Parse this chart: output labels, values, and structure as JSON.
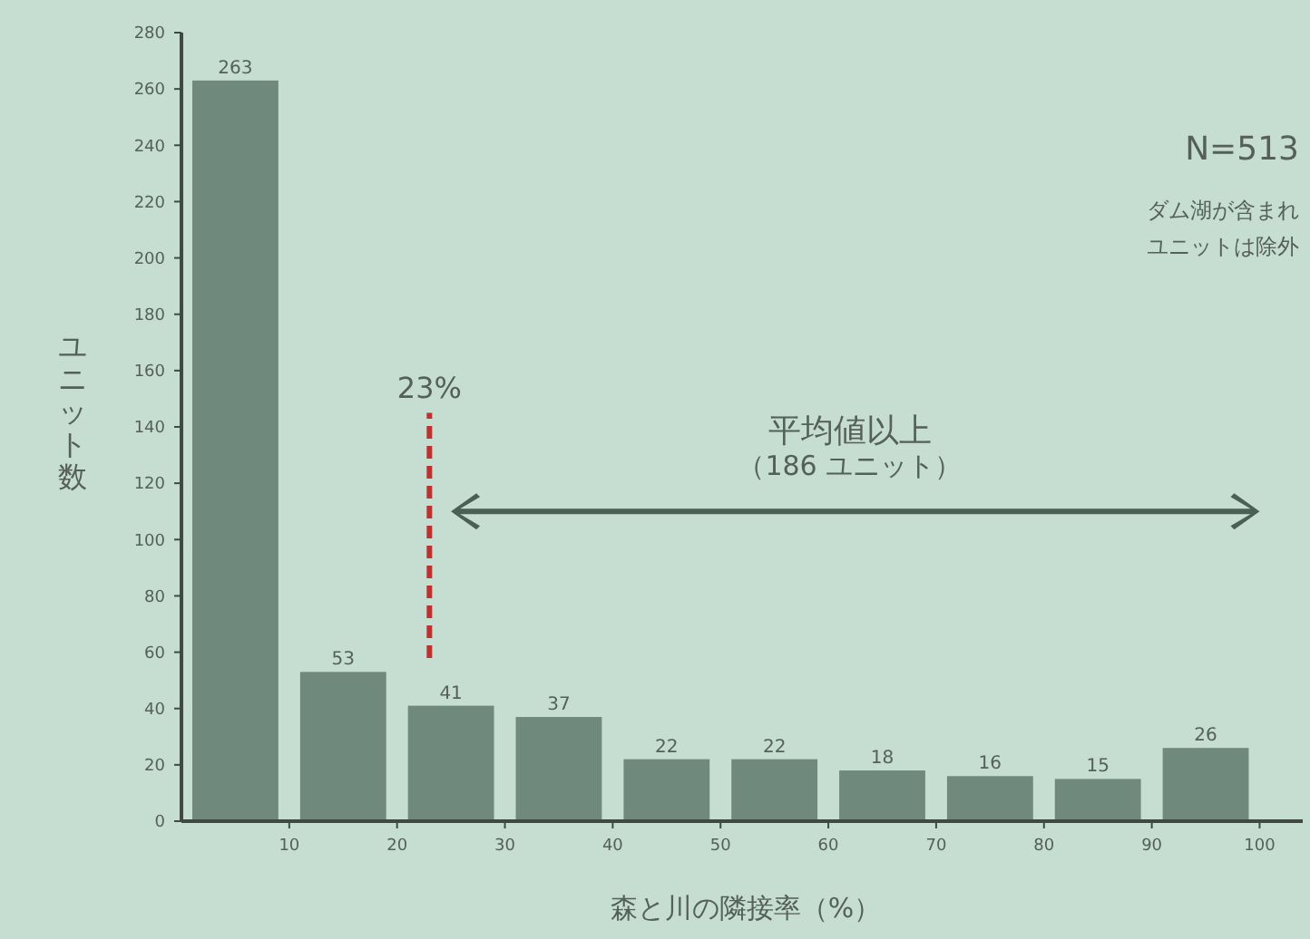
{
  "chart_data": {
    "type": "histogram",
    "xlabel": "森と川の隣接率（%）",
    "ylabel": "ユニット数",
    "bins": [
      0,
      10,
      20,
      30,
      40,
      50,
      60,
      70,
      80,
      90,
      100
    ],
    "values": [
      263,
      53,
      41,
      37,
      22,
      22,
      18,
      16,
      15,
      26
    ],
    "color": "#6f8a7d",
    "data_labels": true,
    "xlim": [
      0,
      104
    ],
    "xticks": [
      10,
      20,
      30,
      40,
      50,
      60,
      70,
      80,
      90,
      100
    ],
    "ylim": [
      0,
      280
    ],
    "yticks": [
      0,
      20,
      40,
      60,
      80,
      100,
      120,
      140,
      160,
      180,
      200,
      220,
      240,
      260,
      280
    ],
    "grid": false,
    "ref_lines": [
      {
        "axis": "x",
        "value": 23,
        "label": "23%",
        "color": "#c0302c",
        "line_style": "dashed"
      }
    ],
    "annotations": [
      "平均値以上",
      "（186 ユニット）",
      "N=513",
      "ダム湖が含まれ",
      "ユニットは除外"
    ]
  }
}
